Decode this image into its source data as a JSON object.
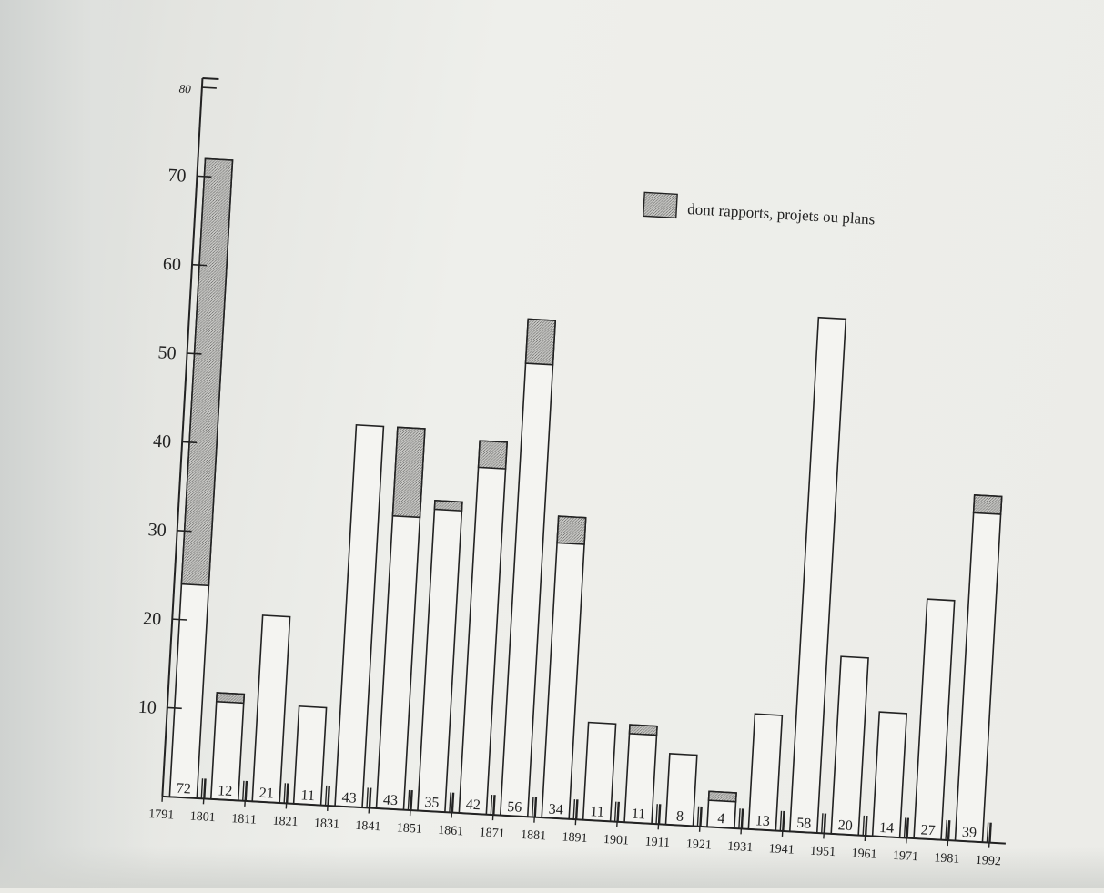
{
  "colors": {
    "ink": "#222222",
    "paper": "#ecece8",
    "hatch": "#9a9a98"
  },
  "chart_data": {
    "type": "bar",
    "title": "",
    "xlabel": "",
    "ylabel": "",
    "ylim": [
      0,
      80
    ],
    "y_ticks": [
      "10",
      "20",
      "30",
      "40",
      "50",
      "60",
      "70",
      "80"
    ],
    "x_tick_labels": [
      "1791",
      "1801",
      "1811",
      "1821",
      "1831",
      "1841",
      "1851",
      "1861",
      "1871",
      "1881",
      "1891",
      "1901",
      "1911",
      "1921",
      "1931",
      "1941",
      "1951",
      "1961",
      "1971",
      "1981",
      "1992"
    ],
    "legend": {
      "label": "dont rapports, projets ou plans",
      "placement": "top-right"
    },
    "grid": false,
    "series": [
      {
        "name": "",
        "values": [
          72,
          12,
          21,
          11,
          43,
          43,
          35,
          42,
          56,
          34,
          11,
          11,
          8,
          4,
          13,
          58,
          20,
          14,
          27,
          39
        ]
      },
      {
        "name": "dont rapports, projets ou plans",
        "values": [
          48,
          1,
          0,
          0,
          0,
          10,
          1,
          3,
          5,
          3,
          0,
          1,
          0,
          1,
          0,
          0,
          0,
          0,
          0,
          2
        ]
      }
    ],
    "bar_total_labels": [
      "72",
      "12",
      "21",
      "11",
      "43",
      "43",
      "35",
      "42",
      "56",
      "34",
      "11",
      "11",
      "8",
      "4",
      "13",
      "58",
      "20",
      "14",
      "27",
      "39"
    ]
  }
}
